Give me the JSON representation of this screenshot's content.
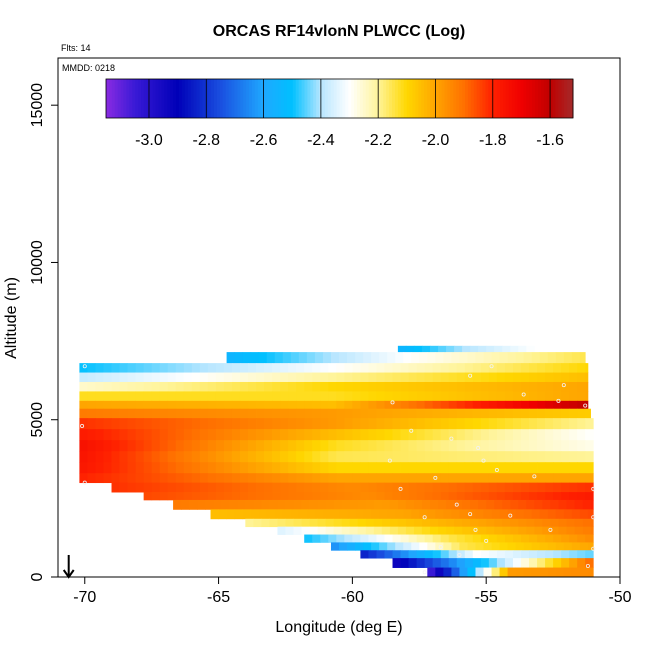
{
  "chart_data": {
    "type": "heatmap",
    "title": "ORCAS RF14vlonN PLWCC (Log)",
    "flights_label": "Flts: 14",
    "date_label": "MMDD: 0218",
    "xlabel": "Longitude (deg E)",
    "ylabel": "Altitude (m)",
    "xlim": [
      -71,
      -50
    ],
    "ylim": [
      0,
      16500
    ],
    "x_ticks": [
      -70,
      -65,
      -60,
      -55,
      -50
    ],
    "x_tick_labels": [
      "-70",
      "-65",
      "-60",
      "-55",
      "-50"
    ],
    "y_ticks": [
      0,
      5000,
      10000,
      15000
    ],
    "y_tick_labels": [
      "0",
      "5000",
      "10000",
      "15000"
    ],
    "grid": false,
    "colorbar": {
      "placement": "top-inside",
      "range": [
        -3.15,
        -1.52
      ],
      "ticks": [
        -3.0,
        -2.8,
        -2.6,
        -2.4,
        -2.2,
        -2.0,
        -1.8,
        -1.6
      ],
      "tick_labels": [
        "-3.0",
        "-2.8",
        "-2.6",
        "-2.4",
        "-2.2",
        "-2.0",
        "-1.8",
        "-1.6"
      ],
      "stops": [
        {
          "v": -3.15,
          "color": "#8a2be2"
        },
        {
          "v": -3.05,
          "color": "#3a1ad6"
        },
        {
          "v": -2.9,
          "color": "#0000b8"
        },
        {
          "v": -2.75,
          "color": "#1a4fe0"
        },
        {
          "v": -2.6,
          "color": "#1fa8ff"
        },
        {
          "v": -2.5,
          "color": "#00c0ff"
        },
        {
          "v": -2.4,
          "color": "#b8e6ff"
        },
        {
          "v": -2.3,
          "color": "#ffffff"
        },
        {
          "v": -2.2,
          "color": "#fff49a"
        },
        {
          "v": -2.1,
          "color": "#ffd700"
        },
        {
          "v": -2.0,
          "color": "#ffa500"
        },
        {
          "v": -1.9,
          "color": "#ff7000"
        },
        {
          "v": -1.8,
          "color": "#ff2000"
        },
        {
          "v": -1.7,
          "color": "#f00000"
        },
        {
          "v": -1.6,
          "color": "#c00000"
        },
        {
          "v": -1.52,
          "color": "#a52a2a"
        }
      ]
    },
    "arrow_marker": {
      "lon": -70.6,
      "alt_top": 700,
      "alt_bottom": 0
    },
    "bands": [
      {
        "a": 7150,
        "b": 7350,
        "l": -58.3,
        "r": -53.2,
        "v": [
          -2.55,
          -2.4,
          -2.3
        ]
      },
      {
        "a": 6800,
        "b": 7150,
        "l": -64.7,
        "r": -51.3,
        "v": [
          -2.55,
          -2.3,
          -2.15
        ]
      },
      {
        "a": 6500,
        "b": 6800,
        "l": -70.2,
        "r": -51.2,
        "v": [
          -2.5,
          -2.3,
          -2.1
        ]
      },
      {
        "a": 6200,
        "b": 6500,
        "l": -70.2,
        "r": -51.2,
        "v": [
          -2.38,
          -2.2,
          -2.05
        ]
      },
      {
        "a": 5900,
        "b": 6200,
        "l": -70.2,
        "r": -51.2,
        "v": [
          -2.25,
          -2.1,
          -2.0
        ]
      },
      {
        "a": 5600,
        "b": 5900,
        "l": -70.2,
        "r": -51.2,
        "v": [
          -2.12,
          -2.12,
          -2.0
        ]
      },
      {
        "a": 5350,
        "b": 5600,
        "l": -70.2,
        "r": -51.2,
        "v": [
          -2.0,
          -2.05,
          -1.6
        ]
      },
      {
        "a": 5050,
        "b": 5350,
        "l": -70.2,
        "r": -51.1,
        "v": [
          -1.92,
          -1.98,
          -2.08
        ]
      },
      {
        "a": 4700,
        "b": 5050,
        "l": -70.2,
        "r": -51.0,
        "v": [
          -1.82,
          -1.98,
          -2.2
        ]
      },
      {
        "a": 4350,
        "b": 4700,
        "l": -70.2,
        "r": -51.0,
        "v": [
          -1.78,
          -2.05,
          -2.3
        ]
      },
      {
        "a": 4000,
        "b": 4350,
        "l": -70.2,
        "r": -51.0,
        "v": [
          -1.75,
          -2.12,
          -2.28
        ]
      },
      {
        "a": 3650,
        "b": 4000,
        "l": -70.2,
        "r": -51.0,
        "v": [
          -1.76,
          -2.15,
          -2.2
        ]
      },
      {
        "a": 3300,
        "b": 3650,
        "l": -70.2,
        "r": -51.0,
        "v": [
          -1.77,
          -2.1,
          -2.1
        ]
      },
      {
        "a": 3000,
        "b": 3300,
        "l": -70.2,
        "r": -51.0,
        "v": [
          -1.8,
          -2.0,
          -2.0
        ]
      },
      {
        "a": 2700,
        "b": 3000,
        "l": -69.0,
        "r": -51.0,
        "v": [
          -1.82,
          -1.95,
          -1.82
        ]
      },
      {
        "a": 2450,
        "b": 2700,
        "l": -67.8,
        "r": -51.0,
        "v": [
          -1.85,
          -1.95,
          -1.78
        ]
      },
      {
        "a": 2150,
        "b": 2450,
        "l": -66.7,
        "r": -51.0,
        "v": [
          -1.92,
          -1.98,
          -1.8
        ]
      },
      {
        "a": 1850,
        "b": 2150,
        "l": -65.3,
        "r": -51.0,
        "v": [
          -2.05,
          -2.0,
          -1.85
        ]
      },
      {
        "a": 1600,
        "b": 1850,
        "l": -64.0,
        "r": -51.0,
        "v": [
          -2.2,
          -2.05,
          -1.9
        ]
      },
      {
        "a": 1350,
        "b": 1600,
        "l": -62.8,
        "r": -51.0,
        "v": [
          -2.35,
          -2.1,
          -1.92
        ]
      },
      {
        "a": 1100,
        "b": 1350,
        "l": -61.8,
        "r": -51.0,
        "v": [
          -2.5,
          -2.15,
          -1.95
        ]
      },
      {
        "a": 850,
        "b": 1100,
        "l": -60.8,
        "r": -51.0,
        "v": [
          -2.65,
          -2.15,
          -2.0
        ]
      },
      {
        "a": 600,
        "b": 850,
        "l": -59.7,
        "r": -51.0,
        "v": [
          -2.85,
          -2.3,
          -2.45
        ]
      },
      {
        "a": 300,
        "b": 600,
        "l": -58.5,
        "r": -51.0,
        "v": [
          -2.95,
          -2.45,
          -1.88
        ]
      },
      {
        "a": 0,
        "b": 300,
        "l": -57.2,
        "r": -51.0,
        "v": [
          -3.1,
          -1.98,
          -1.95
        ]
      }
    ],
    "points": [
      {
        "lon": -70.0,
        "alt": 6700
      },
      {
        "lon": -70.1,
        "alt": 4800
      },
      {
        "lon": -70.0,
        "alt": 3000
      },
      {
        "lon": -58.5,
        "alt": 5550
      },
      {
        "lon": -57.8,
        "alt": 4650
      },
      {
        "lon": -56.3,
        "alt": 4400
      },
      {
        "lon": -55.6,
        "alt": 6400
      },
      {
        "lon": -54.8,
        "alt": 6700
      },
      {
        "lon": -53.6,
        "alt": 5800
      },
      {
        "lon": -52.3,
        "alt": 5600
      },
      {
        "lon": -51.3,
        "alt": 5450
      },
      {
        "lon": -52.1,
        "alt": 6100
      },
      {
        "lon": -55.1,
        "alt": 3700
      },
      {
        "lon": -55.3,
        "alt": 4100
      },
      {
        "lon": -54.6,
        "alt": 3400
      },
      {
        "lon": -56.9,
        "alt": 3150
      },
      {
        "lon": -58.6,
        "alt": 3700
      },
      {
        "lon": -58.2,
        "alt": 2800
      },
      {
        "lon": -56.1,
        "alt": 2300
      },
      {
        "lon": -57.3,
        "alt": 1900
      },
      {
        "lon": -55.6,
        "alt": 2000
      },
      {
        "lon": -55.4,
        "alt": 1500
      },
      {
        "lon": -56.7,
        "alt": 950
      },
      {
        "lon": -55.0,
        "alt": 1150
      },
      {
        "lon": -53.2,
        "alt": 3200
      },
      {
        "lon": -51.0,
        "alt": 2800
      },
      {
        "lon": -51.0,
        "alt": 1900
      },
      {
        "lon": -52.6,
        "alt": 1500
      },
      {
        "lon": -51.0,
        "alt": 900
      },
      {
        "lon": -54.1,
        "alt": 1950
      },
      {
        "lon": -56.0,
        "alt": 700
      },
      {
        "lon": -51.2,
        "alt": 350
      },
      {
        "lon": -57.3,
        "alt": 150
      }
    ]
  }
}
